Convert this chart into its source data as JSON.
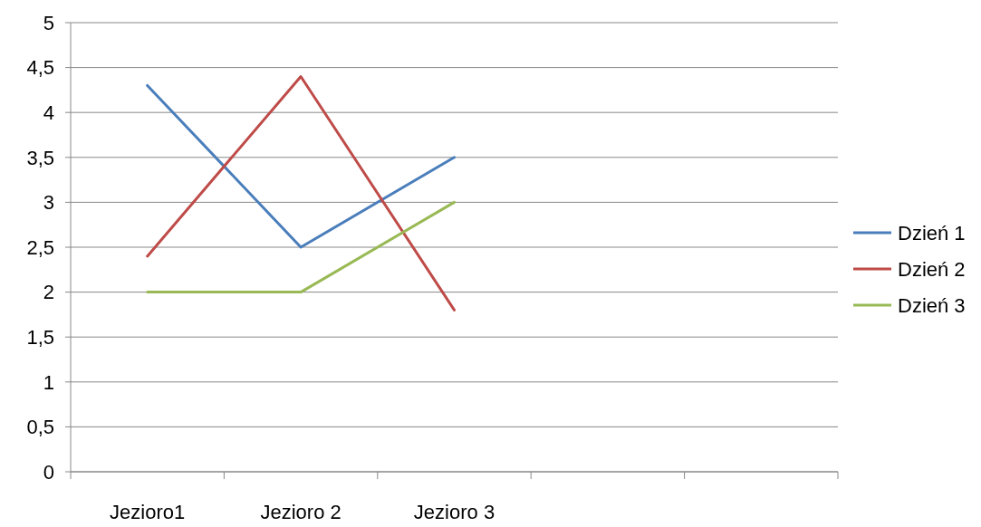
{
  "chart_data": {
    "type": "line",
    "categories": [
      "Jezioro1",
      "Jezioro 2",
      "Jezioro 3",
      null,
      null
    ],
    "series": [
      {
        "name": "Dzień 1",
        "color": "#4a7ebb",
        "values": [
          4.3,
          2.5,
          3.5,
          null,
          null
        ]
      },
      {
        "name": "Dzień 2",
        "color": "#be4b48",
        "values": [
          2.4,
          4.4,
          1.8,
          null,
          null
        ]
      },
      {
        "name": "Dzień 3",
        "color": "#98b954",
        "values": [
          2,
          2,
          3,
          null,
          null
        ]
      }
    ],
    "ylim": [
      0,
      5
    ],
    "yticks": [
      0,
      {
        "value": 0.5,
        "label": "0,5"
      },
      1,
      {
        "value": 1.5,
        "label": "1,5"
      },
      2,
      {
        "value": 2.5,
        "label": "2,5"
      },
      3,
      {
        "value": 3.5,
        "label": "3,5"
      },
      4,
      {
        "value": 4.5,
        "label": "4,5"
      },
      5
    ],
    "grid": "y",
    "legend": "right",
    "marker": "none",
    "line_style": "solid"
  }
}
